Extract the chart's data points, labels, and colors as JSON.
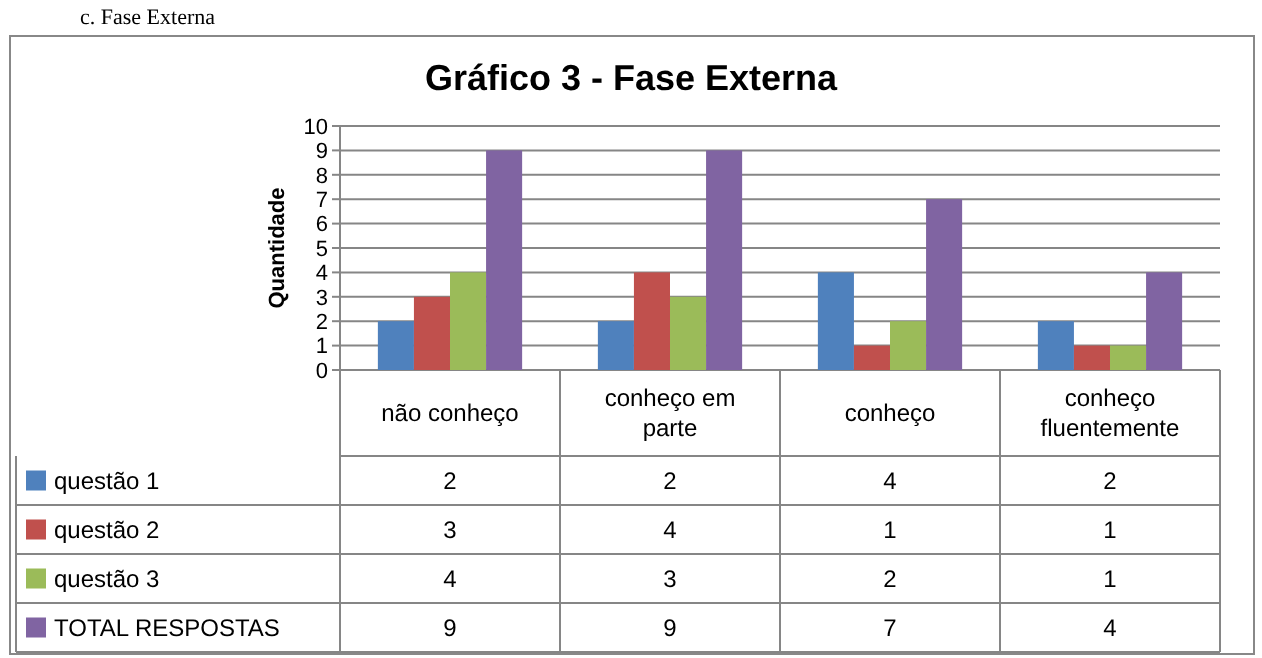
{
  "chart_data": {
    "type": "bar",
    "title": "Gráfico 3 - Fase Externa",
    "ylabel": "Quantidade",
    "annotations": [
      "c. Fase Externa"
    ],
    "categories": [
      "não conheço",
      "conheço em parte",
      "conheço",
      "conheço fluentemente"
    ],
    "series": [
      {
        "name": "questão 1",
        "color": "#4f81bd",
        "values": [
          2,
          2,
          4,
          2
        ]
      },
      {
        "name": "questão 2",
        "color": "#c0504d",
        "values": [
          3,
          4,
          1,
          1
        ]
      },
      {
        "name": "questão 3",
        "color": "#9bbb59",
        "values": [
          4,
          3,
          2,
          1
        ]
      },
      {
        "name": "TOTAL RESPOSTAS",
        "color": "#8064a2",
        "values": [
          9,
          9,
          7,
          4
        ]
      }
    ],
    "ylim": [
      0,
      10
    ],
    "yticks": [
      0,
      1,
      2,
      3,
      4,
      5,
      6,
      7,
      8,
      9,
      10
    ],
    "grid": "y",
    "legend": "bottom",
    "data_labels": true
  }
}
